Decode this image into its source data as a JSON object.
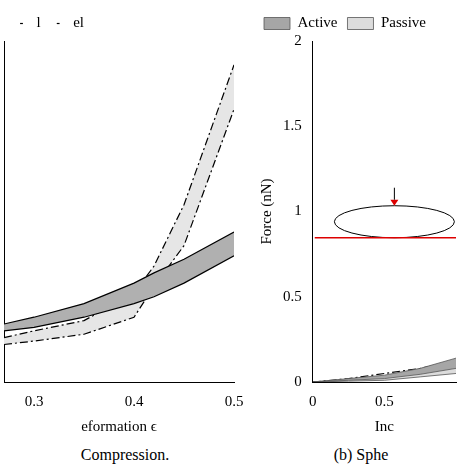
{
  "chart_data": [
    {
      "type": "line",
      "caption": "Compression.",
      "xlabel": "eformation ϵ",
      "legend": "upper left",
      "tick_labels": "x",
      "grid": false,
      "x": [
        0.27,
        0.3,
        0.35,
        0.4,
        0.42,
        0.45,
        0.5
      ],
      "xlim": [
        0.27,
        0.5
      ],
      "xticks": [
        0.3,
        0.4,
        0.5
      ],
      "ylim": [
        0,
        1
      ],
      "series": [
        {
          "name": "l",
          "color": "#b0b0b0",
          "line_style": "solid",
          "values": [
            0.15,
            0.16,
            0.19,
            0.23,
            0.25,
            0.29,
            0.37
          ],
          "upper": [
            0.17,
            0.19,
            0.23,
            0.29,
            0.32,
            0.36,
            0.44
          ]
        },
        {
          "name": "el",
          "color": "#e6e6e6",
          "line_style": "dashdot",
          "values": [
            0.11,
            0.12,
            0.14,
            0.19,
            0.28,
            0.4,
            0.8
          ],
          "upper": [
            0.13,
            0.15,
            0.18,
            0.26,
            0.34,
            0.52,
            0.93
          ]
        }
      ]
    },
    {
      "type": "area",
      "caption": "(b) Sphe",
      "xlabel": "Inc",
      "ylabel": "Force (nN)",
      "legend": "upper left",
      "grid": false,
      "x": [
        0,
        0.25,
        0.5,
        0.75,
        1
      ],
      "xlim": [
        0,
        1
      ],
      "xticks": [
        0,
        0.5
      ],
      "ylim": [
        0,
        2
      ],
      "yticks": [
        0,
        0.5,
        1,
        1.5,
        2
      ],
      "series": [
        {
          "name": "Active",
          "color": "#a6a6a6",
          "line_style": "solid",
          "values": [
            0,
            0.01,
            0.02,
            0.045,
            0.08
          ],
          "upper": [
            0,
            0.02,
            0.04,
            0.08,
            0.14
          ]
        },
        {
          "name": "Passive",
          "color": "#dcdcdc",
          "line_style": "solid",
          "values": [
            0,
            0.005,
            0.01,
            0.03,
            0.05
          ],
          "upper": [
            0,
            0.015,
            0.03,
            0.06,
            0.1
          ]
        },
        {
          "color": "#000000",
          "line_style": "dashdot",
          "values": [
            0,
            0.02,
            0.05,
            0.08,
            0.12
          ]
        }
      ]
    }
  ]
}
